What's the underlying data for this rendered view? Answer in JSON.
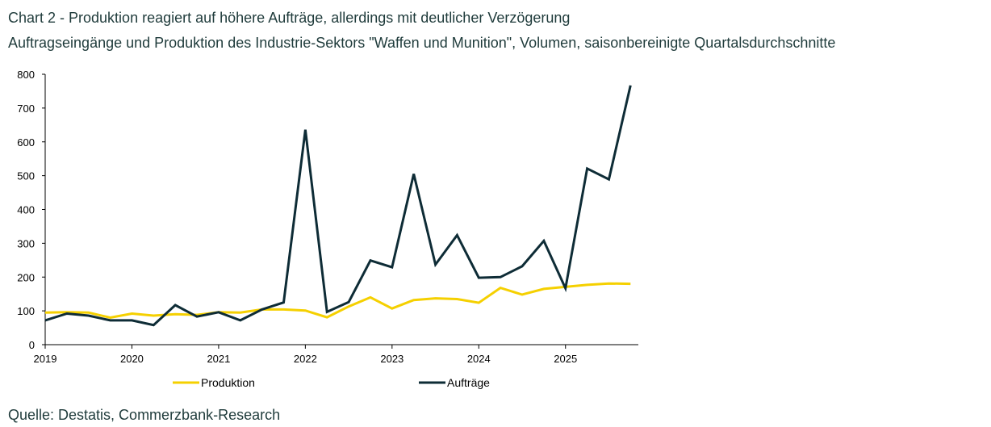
{
  "title": "Chart 2 - Produktion reagiert auf höhere Aufträge, allerdings mit deutlicher Verzögerung",
  "subtitle": "Auftragseingänge und Produktion des Industrie-Sektors \"Waffen und Munition\", Volumen, saisonbereinigte Quartalsdurchschnitte",
  "source": "Quelle: Destatis, Commerzbank-Research",
  "chart_data": {
    "type": "line",
    "x": [
      2019.0,
      2019.25,
      2019.5,
      2019.75,
      2020.0,
      2020.25,
      2020.5,
      2020.75,
      2021.0,
      2021.25,
      2021.5,
      2021.75,
      2022.0,
      2022.25,
      2022.5,
      2022.75,
      2023.0,
      2023.25,
      2023.5,
      2023.75,
      2024.0,
      2024.25,
      2024.5,
      2024.75,
      2025.0,
      2025.25,
      2025.5,
      2025.75
    ],
    "series": [
      {
        "name": "Produktion",
        "color": "#f5d000",
        "values": [
          95,
          96,
          95,
          80,
          92,
          86,
          90,
          88,
          96,
          95,
          104,
          104,
          101,
          81,
          113,
          140,
          107,
          132,
          137,
          135,
          124,
          168,
          148,
          165,
          171,
          177,
          181,
          180
        ]
      },
      {
        "name": "Aufträge",
        "color": "#0e2c36",
        "values": [
          72,
          92,
          86,
          72,
          72,
          58,
          117,
          83,
          96,
          72,
          104,
          125,
          636,
          97,
          126,
          249,
          229,
          505,
          237,
          324,
          198,
          200,
          232,
          307,
          167,
          521,
          489,
          767
        ]
      }
    ],
    "xticks": [
      2019,
      2020,
      2021,
      2022,
      2023,
      2024,
      2025
    ],
    "xtick_labels": [
      "2019",
      "2020",
      "2021",
      "2022",
      "2023",
      "2024",
      "2025"
    ],
    "yticks": [
      0,
      100,
      200,
      300,
      400,
      500,
      600,
      700,
      800
    ],
    "ytick_labels": [
      "0",
      "100",
      "200",
      "300",
      "400",
      "500",
      "600",
      "700",
      "800"
    ],
    "xlim": [
      2019.0,
      2025.84
    ],
    "ylim": [
      0,
      800
    ],
    "xlabel": "",
    "ylabel": "",
    "legend": "bottom",
    "grid": false
  }
}
